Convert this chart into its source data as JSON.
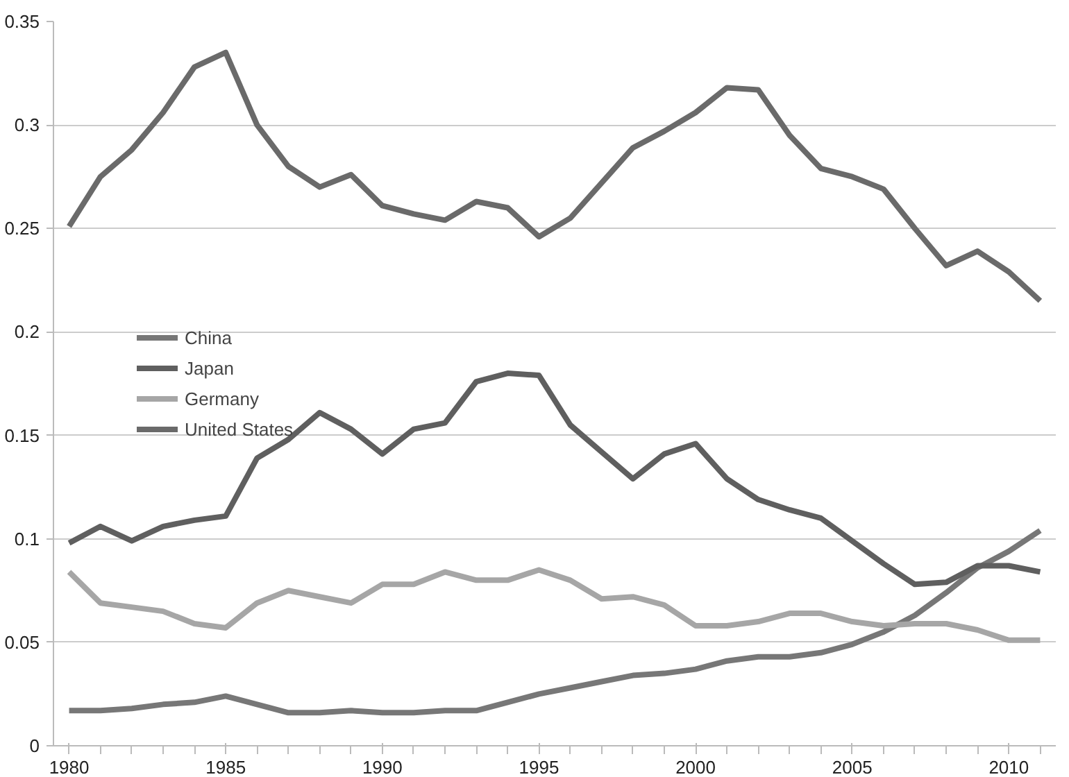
{
  "chart_data": {
    "type": "line",
    "x": [
      1980,
      1981,
      1982,
      1983,
      1984,
      1985,
      1986,
      1987,
      1988,
      1989,
      1990,
      1991,
      1992,
      1993,
      1994,
      1995,
      1996,
      1997,
      1998,
      1999,
      2000,
      2001,
      2002,
      2003,
      2004,
      2005,
      2006,
      2007,
      2008,
      2009,
      2010,
      2011
    ],
    "series": [
      {
        "name": "China",
        "color": "#777777",
        "values": [
          0.017,
          0.017,
          0.018,
          0.02,
          0.021,
          0.024,
          0.02,
          0.016,
          0.016,
          0.017,
          0.016,
          0.016,
          0.017,
          0.017,
          0.021,
          0.025,
          0.028,
          0.031,
          0.034,
          0.035,
          0.037,
          0.041,
          0.043,
          0.043,
          0.045,
          0.049,
          0.055,
          0.063,
          0.074,
          0.086,
          0.094,
          0.104
        ]
      },
      {
        "name": "Japan",
        "color": "#5f5f5f",
        "values": [
          0.098,
          0.106,
          0.099,
          0.106,
          0.109,
          0.111,
          0.139,
          0.148,
          0.161,
          0.153,
          0.141,
          0.153,
          0.156,
          0.176,
          0.18,
          0.179,
          0.155,
          0.142,
          0.129,
          0.141,
          0.146,
          0.129,
          0.119,
          0.114,
          0.11,
          0.099,
          0.088,
          0.078,
          0.079,
          0.087,
          0.087,
          0.084
        ]
      },
      {
        "name": "Germany",
        "color": "#a6a6a6",
        "values": [
          0.084,
          0.069,
          0.067,
          0.065,
          0.059,
          0.057,
          0.069,
          0.075,
          0.072,
          0.069,
          0.078,
          0.078,
          0.084,
          0.08,
          0.08,
          0.085,
          0.08,
          0.071,
          0.072,
          0.068,
          0.058,
          0.058,
          0.06,
          0.064,
          0.064,
          0.06,
          0.058,
          0.059,
          0.059,
          0.056,
          0.051,
          0.051
        ]
      },
      {
        "name": "United States",
        "color": "#6a6a6a",
        "values": [
          0.251,
          0.275,
          0.288,
          0.306,
          0.328,
          0.335,
          0.3,
          0.28,
          0.27,
          0.276,
          0.261,
          0.257,
          0.254,
          0.263,
          0.26,
          0.246,
          0.255,
          0.272,
          0.289,
          0.297,
          0.306,
          0.318,
          0.317,
          0.295,
          0.279,
          0.275,
          0.269,
          0.25,
          0.232,
          0.239,
          0.229,
          0.215
        ]
      }
    ],
    "xlim": [
      1979.5,
      2011.5
    ],
    "xticks": [
      1980,
      1985,
      1990,
      1995,
      2000,
      2005,
      2010
    ],
    "ylim": [
      0,
      0.35
    ],
    "yticks": [
      0,
      0.05,
      0.1,
      0.15,
      0.2,
      0.25,
      0.3,
      0.35
    ],
    "grid": "y",
    "legend": "left",
    "line_style": "solid",
    "marker": "none"
  }
}
